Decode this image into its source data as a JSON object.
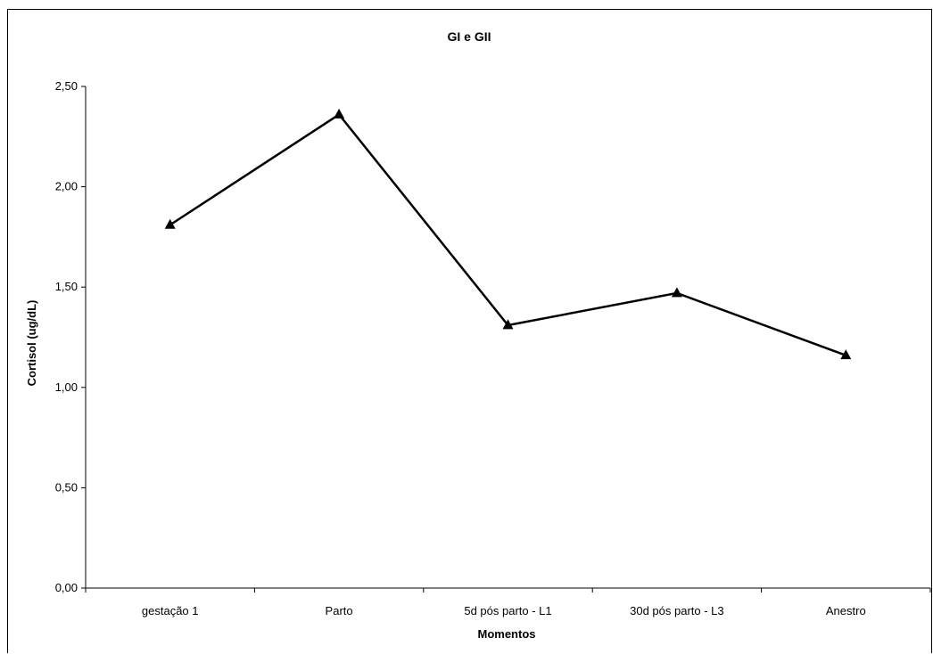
{
  "chart_data": {
    "type": "line",
    "title": "GI e GII",
    "xlabel": "Momentos",
    "ylabel": "Cortisol (ug/dL)",
    "categories": [
      "gestação 1",
      "Parto",
      "5d pós parto - L1",
      "30d pós parto - L3",
      "Anestro"
    ],
    "series": [
      {
        "values": [
          1.81,
          2.36,
          1.31,
          1.47,
          1.16
        ],
        "color": "#000000",
        "marker": "triangle"
      }
    ],
    "ylim": [
      0,
      2.5
    ],
    "yticks": [
      "0,00",
      "0,50",
      "1,00",
      "1,50",
      "2,00",
      "2,50"
    ],
    "grid": false,
    "legend": "none"
  }
}
